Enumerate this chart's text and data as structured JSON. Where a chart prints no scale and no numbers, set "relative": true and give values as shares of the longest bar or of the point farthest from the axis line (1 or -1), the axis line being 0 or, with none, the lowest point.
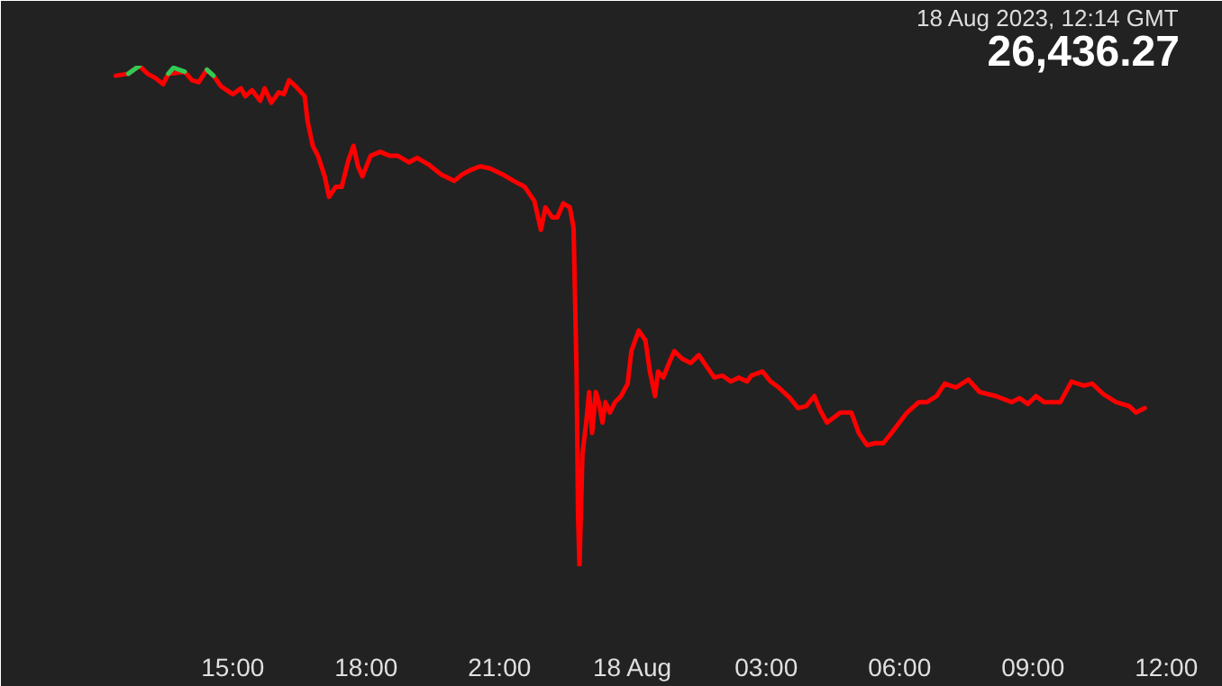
{
  "chart_data": {
    "type": "line",
    "relative": true,
    "annotations": [
      "18 Aug 2023, 12:14 GMT",
      "26,436.27"
    ],
    "xlim": [
      "2023-08-17T11:00",
      "2023-08-18T12:18"
    ],
    "xticks": [
      {
        "value": "2023-08-17T15:00",
        "label": "15:00"
      },
      {
        "value": "2023-08-17T18:00",
        "label": "18:00"
      },
      {
        "value": "2023-08-17T21:00",
        "label": "21:00"
      },
      {
        "value": "2023-08-18T00:00",
        "label": "18 Aug"
      },
      {
        "value": "2023-08-18T03:00",
        "label": "03:00"
      },
      {
        "value": "2023-08-18T06:00",
        "label": "06:00"
      },
      {
        "value": "2023-08-18T09:00",
        "label": "09:00"
      },
      {
        "value": "2023-08-18T12:00",
        "label": "12:00"
      }
    ],
    "marker": "none",
    "line_style": "solid",
    "series": [
      {
        "color": "#ff0000",
        "x": [
          "2023-08-17T12:22",
          "2023-08-17T12:39",
          "2023-08-17T12:54",
          "2023-08-17T13:05",
          "2023-08-17T13:16",
          "2023-08-17T13:26",
          "2023-08-17T13:33",
          "2023-08-17T13:55",
          "2023-08-17T14:05",
          "2023-08-17T14:14",
          "2023-08-17T14:25",
          "2023-08-17T14:34",
          "2023-08-17T14:44",
          "2023-08-17T15:00",
          "2023-08-17T15:11",
          "2023-08-17T15:17",
          "2023-08-17T15:26",
          "2023-08-17T15:37",
          "2023-08-17T15:43",
          "2023-08-17T15:52",
          "2023-08-17T16:02",
          "2023-08-17T16:09",
          "2023-08-17T16:16",
          "2023-08-17T16:25",
          "2023-08-17T16:37",
          "2023-08-17T16:41",
          "2023-08-17T16:48",
          "2023-08-17T16:55",
          "2023-08-17T17:04",
          "2023-08-17T17:10",
          "2023-08-17T17:19",
          "2023-08-17T17:27",
          "2023-08-17T17:36",
          "2023-08-17T17:43",
          "2023-08-17T17:49",
          "2023-08-17T17:55",
          "2023-08-17T18:06",
          "2023-08-17T18:19",
          "2023-08-17T18:32",
          "2023-08-17T18:43",
          "2023-08-17T18:58",
          "2023-08-17T19:09",
          "2023-08-17T19:24",
          "2023-08-17T19:41",
          "2023-08-17T19:59",
          "2023-08-17T20:10",
          "2023-08-17T20:20",
          "2023-08-17T20:34",
          "2023-08-17T20:47",
          "2023-08-17T21:04",
          "2023-08-17T21:19",
          "2023-08-17T21:34",
          "2023-08-17T21:47",
          "2023-08-17T21:56",
          "2023-08-17T22:02",
          "2023-08-17T22:11",
          "2023-08-17T22:18",
          "2023-08-17T22:26",
          "2023-08-17T22:35",
          "2023-08-17T22:40",
          "2023-08-17T22:44",
          "2023-08-17T22:46",
          "2023-08-17T22:48",
          "2023-08-17T22:52",
          "2023-08-17T22:57",
          "2023-08-17T23:01",
          "2023-08-17T23:05",
          "2023-08-17T23:10",
          "2023-08-17T23:14",
          "2023-08-17T23:19",
          "2023-08-17T23:23",
          "2023-08-17T23:29",
          "2023-08-17T23:36",
          "2023-08-17T23:44",
          "2023-08-17T23:53",
          "2023-08-17T23:58",
          "2023-08-18T00:08",
          "2023-08-18T00:17",
          "2023-08-18T00:23",
          "2023-08-18T00:30",
          "2023-08-18T00:34",
          "2023-08-18T00:41",
          "2023-08-18T00:50",
          "2023-08-18T00:56",
          "2023-08-18T01:07",
          "2023-08-18T01:18",
          "2023-08-18T01:29",
          "2023-08-18T01:40",
          "2023-08-18T01:50",
          "2023-08-18T02:01",
          "2023-08-18T02:12",
          "2023-08-18T02:23",
          "2023-08-18T02:34",
          "2023-08-18T02:40",
          "2023-08-18T02:55",
          "2023-08-18T03:06",
          "2023-08-18T03:17",
          "2023-08-18T03:32",
          "2023-08-18T03:43",
          "2023-08-18T03:54",
          "2023-08-18T04:05",
          "2023-08-18T04:13",
          "2023-08-18T04:22",
          "2023-08-18T04:40",
          "2023-08-18T04:55",
          "2023-08-18T05:05",
          "2023-08-18T05:16",
          "2023-08-18T05:27",
          "2023-08-18T05:38",
          "2023-08-18T05:49",
          "2023-08-18T06:10",
          "2023-08-18T06:26",
          "2023-08-18T06:37",
          "2023-08-18T06:50",
          "2023-08-18T07:01",
          "2023-08-18T07:16",
          "2023-08-18T07:33",
          "2023-08-18T07:48",
          "2023-08-18T08:10",
          "2023-08-18T08:31",
          "2023-08-18T08:42",
          "2023-08-18T08:53",
          "2023-08-18T09:04",
          "2023-08-18T09:15",
          "2023-08-18T09:37",
          "2023-08-18T09:52",
          "2023-08-18T10:09",
          "2023-08-18T10:20",
          "2023-08-18T10:35",
          "2023-08-18T10:52",
          "2023-08-18T11:10",
          "2023-08-18T11:19",
          "2023-08-18T11:31"
        ],
        "values": [
          0.98,
          0.984,
          1.0,
          0.984,
          0.975,
          0.963,
          0.984,
          0.988,
          0.971,
          0.967,
          0.992,
          0.98,
          0.959,
          0.943,
          0.955,
          0.939,
          0.951,
          0.93,
          0.955,
          0.926,
          0.947,
          0.943,
          0.971,
          0.959,
          0.939,
          0.889,
          0.84,
          0.82,
          0.779,
          0.738,
          0.758,
          0.758,
          0.811,
          0.84,
          0.799,
          0.779,
          0.82,
          0.828,
          0.82,
          0.82,
          0.807,
          0.816,
          0.803,
          0.783,
          0.77,
          0.783,
          0.791,
          0.799,
          0.795,
          0.783,
          0.77,
          0.758,
          0.73,
          0.672,
          0.717,
          0.697,
          0.697,
          0.725,
          0.717,
          0.676,
          0.389,
          0.102,
          0,
          0.225,
          0.287,
          0.348,
          0.266,
          0.348,
          0.328,
          0.287,
          0.328,
          0.307,
          0.328,
          0.34,
          0.365,
          0.43,
          0.471,
          0.451,
          0.389,
          0.34,
          0.389,
          0.377,
          0.41,
          0.43,
          0.414,
          0.406,
          0.422,
          0.398,
          0.377,
          0.381,
          0.369,
          0.377,
          0.369,
          0.381,
          0.389,
          0.369,
          0.357,
          0.336,
          0.316,
          0.32,
          0.34,
          0.311,
          0.287,
          0.307,
          0.307,
          0.266,
          0.242,
          0.246,
          0.246,
          0.266,
          0.307,
          0.328,
          0.328,
          0.34,
          0.365,
          0.357,
          0.373,
          0.348,
          0.34,
          0.328,
          0.336,
          0.324,
          0.34,
          0.328,
          0.328,
          0.369,
          0.361,
          0.365,
          0.344,
          0.328,
          0.32,
          0.307,
          0.316
        ]
      },
      {
        "color": "#2ecc55",
        "x": [
          "2023-08-17T12:39",
          "2023-08-17T12:54"
        ],
        "values": [
          0.984,
          1.0
        ]
      },
      {
        "color": "#2ecc56",
        "x": [
          "2023-08-17T13:33",
          "2023-08-17T13:40",
          "2023-08-17T13:55"
        ],
        "values": [
          0.984,
          0.996,
          0.988
        ]
      },
      {
        "color": "#2ecc57",
        "x": [
          "2023-08-17T14:25",
          "2023-08-17T14:34"
        ],
        "values": [
          0.992,
          0.98
        ]
      }
    ]
  }
}
